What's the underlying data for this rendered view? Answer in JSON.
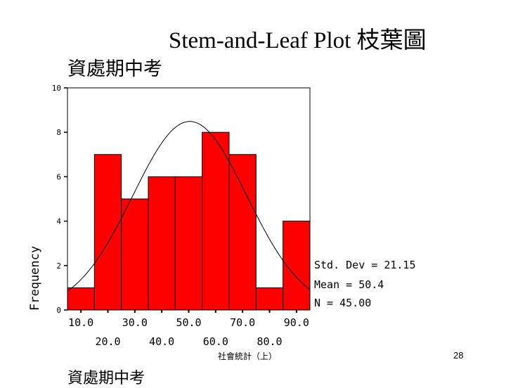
{
  "slide": {
    "title": "Stem-and-Leaf Plot 枝葉圖",
    "subtitle": "資處期中考",
    "subtitle_bottom": "資處期中考",
    "footer": "社會統計（上）",
    "page_number": "28"
  },
  "chart_data": {
    "type": "bar",
    "title": "資處期中考",
    "xlabel": "",
    "ylabel": "Frequency",
    "categories": [
      "10.0",
      "20.0",
      "30.0",
      "40.0",
      "50.0",
      "60.0",
      "70.0",
      "80.0",
      "90.0"
    ],
    "x_tick_labels_row1": [
      "10.0",
      "30.0",
      "50.0",
      "70.0",
      "90.0"
    ],
    "x_tick_labels_row2": [
      "20.0",
      "40.0",
      "60.0",
      "80.0"
    ],
    "values": [
      1,
      7,
      5,
      6,
      6,
      8,
      7,
      1,
      4
    ],
    "ylim": [
      0,
      10
    ],
    "y_ticks": [
      "0",
      "2",
      "4",
      "6",
      "8",
      "10"
    ],
    "bar_color": "#ff0000",
    "normal_curve": true,
    "stats": {
      "std_dev": "Std. Dev = 21.15",
      "mean": "Mean = 50.4",
      "n": "N = 45.00"
    },
    "legend": "right-bottom"
  }
}
